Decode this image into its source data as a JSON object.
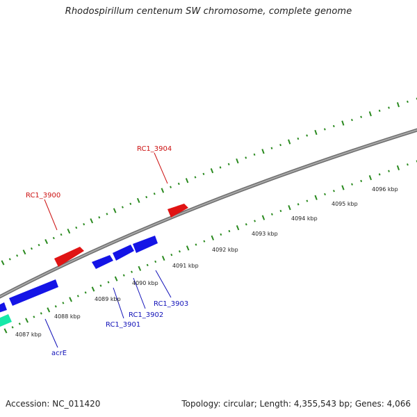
{
  "title": "Rhodospirillum centenum SW chromosome, complete genome",
  "footer": {
    "accession": "Accession: NC_011420",
    "summary": "Topology: circular; Length: 4,355,543 bp; Genes: 4,066"
  },
  "colors": {
    "backbone": "#8a8a8a",
    "tick": "#2a8a1f",
    "forward_gene": "#e01414",
    "reverse_gene": "#1414e6",
    "rna_gene": "#16e8a8",
    "forward_label": "#cc1010",
    "reverse_label": "#1010b8"
  },
  "axis": {
    "unit": "kbp",
    "ticks": [
      {
        "kbp": 4087,
        "label": "4087 kbp"
      },
      {
        "kbp": 4088,
        "label": "4088 kbp"
      },
      {
        "kbp": 4089,
        "label": "4089 kbp"
      },
      {
        "kbp": 4090,
        "label": "4090 kbp"
      },
      {
        "kbp": 4091,
        "label": "4091 kbp"
      },
      {
        "kbp": 4092,
        "label": "4092 kbp"
      },
      {
        "kbp": 4093,
        "label": "4093 kbp"
      },
      {
        "kbp": 4094,
        "label": "4094 kbp"
      },
      {
        "kbp": 4095,
        "label": "4095 kbp"
      },
      {
        "kbp": 4096,
        "label": "4096 kbp"
      }
    ]
  },
  "gene_labels": [
    {
      "name": "RC1_3900",
      "strand": "forward"
    },
    {
      "name": "RC1_3904",
      "strand": "forward"
    },
    {
      "name": "RC1_3901",
      "strand": "reverse"
    },
    {
      "name": "RC1_3902",
      "strand": "reverse"
    },
    {
      "name": "RC1_3903",
      "strand": "reverse"
    },
    {
      "name": "acrE",
      "strand": "reverse"
    }
  ]
}
